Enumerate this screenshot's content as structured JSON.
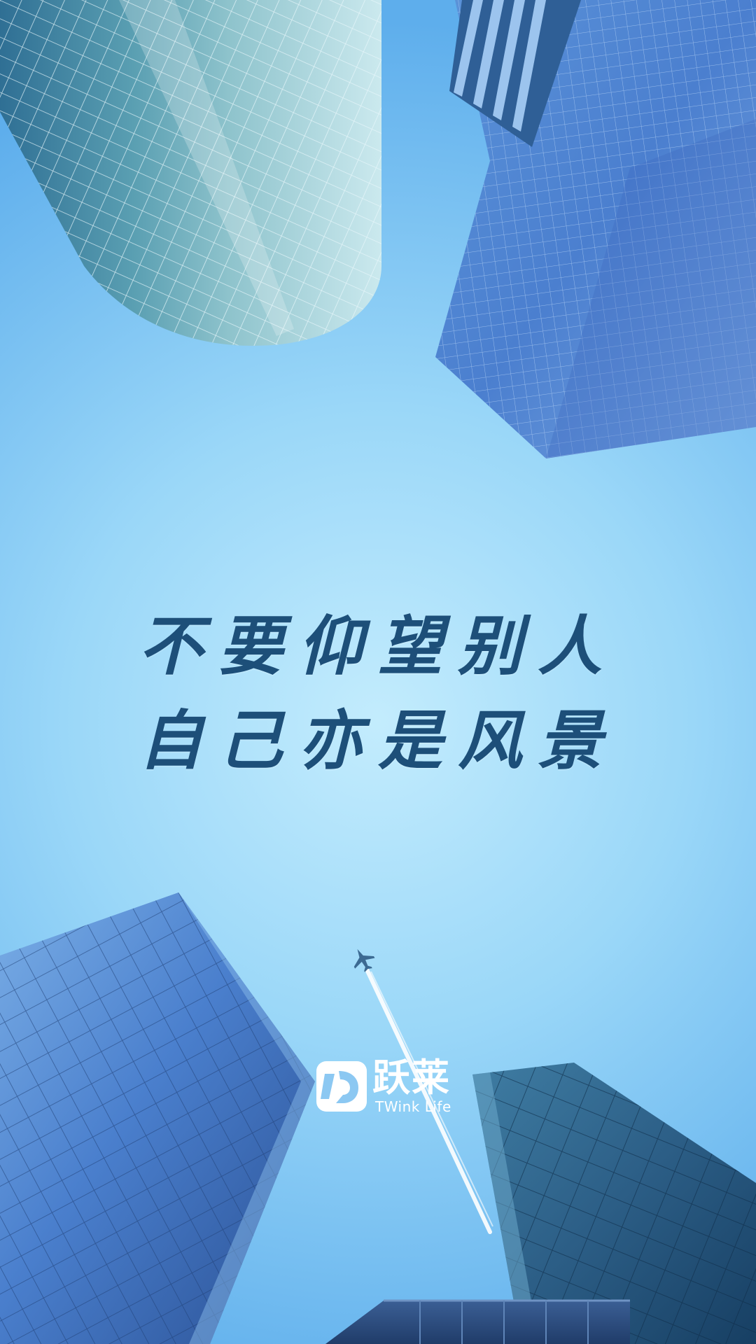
{
  "slogan": {
    "line1": "不要仰望别人",
    "line2": "自己亦是风景"
  },
  "brand": {
    "name": "跃莱",
    "subtitle": "TWink Life",
    "logo_icon": "twink-life-logo-icon"
  },
  "colors": {
    "sky_center": "#bdeafd",
    "sky_edge": "#6bb8ef",
    "text": "#1d4f79",
    "building_blue": "#3f72c4",
    "building_teal": "#5aa3b5"
  }
}
